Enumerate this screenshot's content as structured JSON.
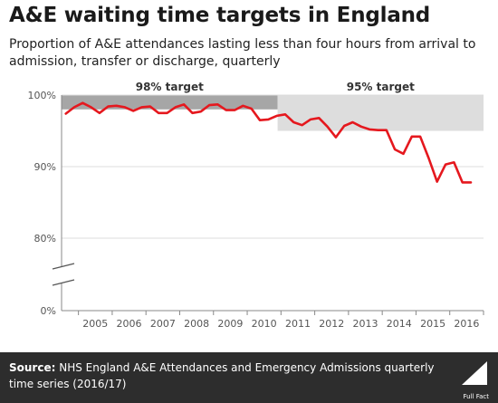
{
  "header": {
    "title": "A&E waiting time targets in England",
    "subtitle": "Proportion of A&E attendances lasting less than four hours from arrival to admission, transfer or discharge, quarterly"
  },
  "footer": {
    "source_label": "Source:",
    "source_text": "NHS England A&E Attendances and Emergency Admissions quarterly time series (2016/17)",
    "logo_text": "Full Fact"
  },
  "colors": {
    "line": "#e5181e",
    "target_98": "#a6a6a6",
    "target_95": "#dddddd",
    "axis_text": "#555555",
    "grid": "#dcdcdc",
    "footer_bg": "#2d2d2d"
  },
  "chart_data": {
    "type": "line",
    "title": "A&E waiting time targets in England",
    "xlabel": "",
    "ylabel": "",
    "ylim": [
      0,
      100
    ],
    "axis_break": true,
    "grid": true,
    "y_ticks": [
      {
        "value": 100,
        "label": "100%"
      },
      {
        "value": 90,
        "label": "90%"
      },
      {
        "value": 80,
        "label": "80%"
      },
      {
        "value": 0,
        "label": "0%"
      }
    ],
    "x_ticks": [
      "2005",
      "2006",
      "2007",
      "2008",
      "2009",
      "2010",
      "2011",
      "2012",
      "2013",
      "2014",
      "2015",
      "2016"
    ],
    "x_start_year": 2004.5,
    "x_end_year": 2017.0,
    "targets": [
      {
        "label": "98% target",
        "from": 2004.5,
        "to": 2010.9,
        "lower": 98,
        "upper": 100
      },
      {
        "label": "95% target",
        "from": 2010.9,
        "to": 2017.0,
        "lower": 95,
        "upper": 100
      }
    ],
    "series": [
      {
        "name": "",
        "x": [
          2004.625,
          2004.875,
          2005.125,
          2005.375,
          2005.625,
          2005.875,
          2006.125,
          2006.375,
          2006.625,
          2006.875,
          2007.125,
          2007.375,
          2007.625,
          2007.875,
          2008.125,
          2008.375,
          2008.625,
          2008.875,
          2009.125,
          2009.375,
          2009.625,
          2009.875,
          2010.125,
          2010.375,
          2010.625,
          2010.875,
          2011.125,
          2011.375,
          2011.625,
          2011.875,
          2012.125,
          2012.375,
          2012.625,
          2012.875,
          2013.125,
          2013.375,
          2013.625,
          2013.875,
          2014.125,
          2014.375,
          2014.625,
          2014.875,
          2015.125,
          2015.375,
          2015.625,
          2015.875,
          2016.125,
          2016.375,
          2016.625
        ],
        "values": [
          97.4,
          98.3,
          98.9,
          98.3,
          97.5,
          98.4,
          98.5,
          98.3,
          97.8,
          98.3,
          98.4,
          97.5,
          97.5,
          98.3,
          98.7,
          97.5,
          97.7,
          98.6,
          98.7,
          97.9,
          97.9,
          98.5,
          98.1,
          96.5,
          96.6,
          97.1,
          97.3,
          96.2,
          95.8,
          96.6,
          96.8,
          95.6,
          94.1,
          95.7,
          96.2,
          95.6,
          95.2,
          95.1,
          95.1,
          92.4,
          91.8,
          94.2,
          94.2,
          91.2,
          87.9,
          90.3,
          90.6,
          87.8,
          87.8
        ]
      }
    ]
  }
}
